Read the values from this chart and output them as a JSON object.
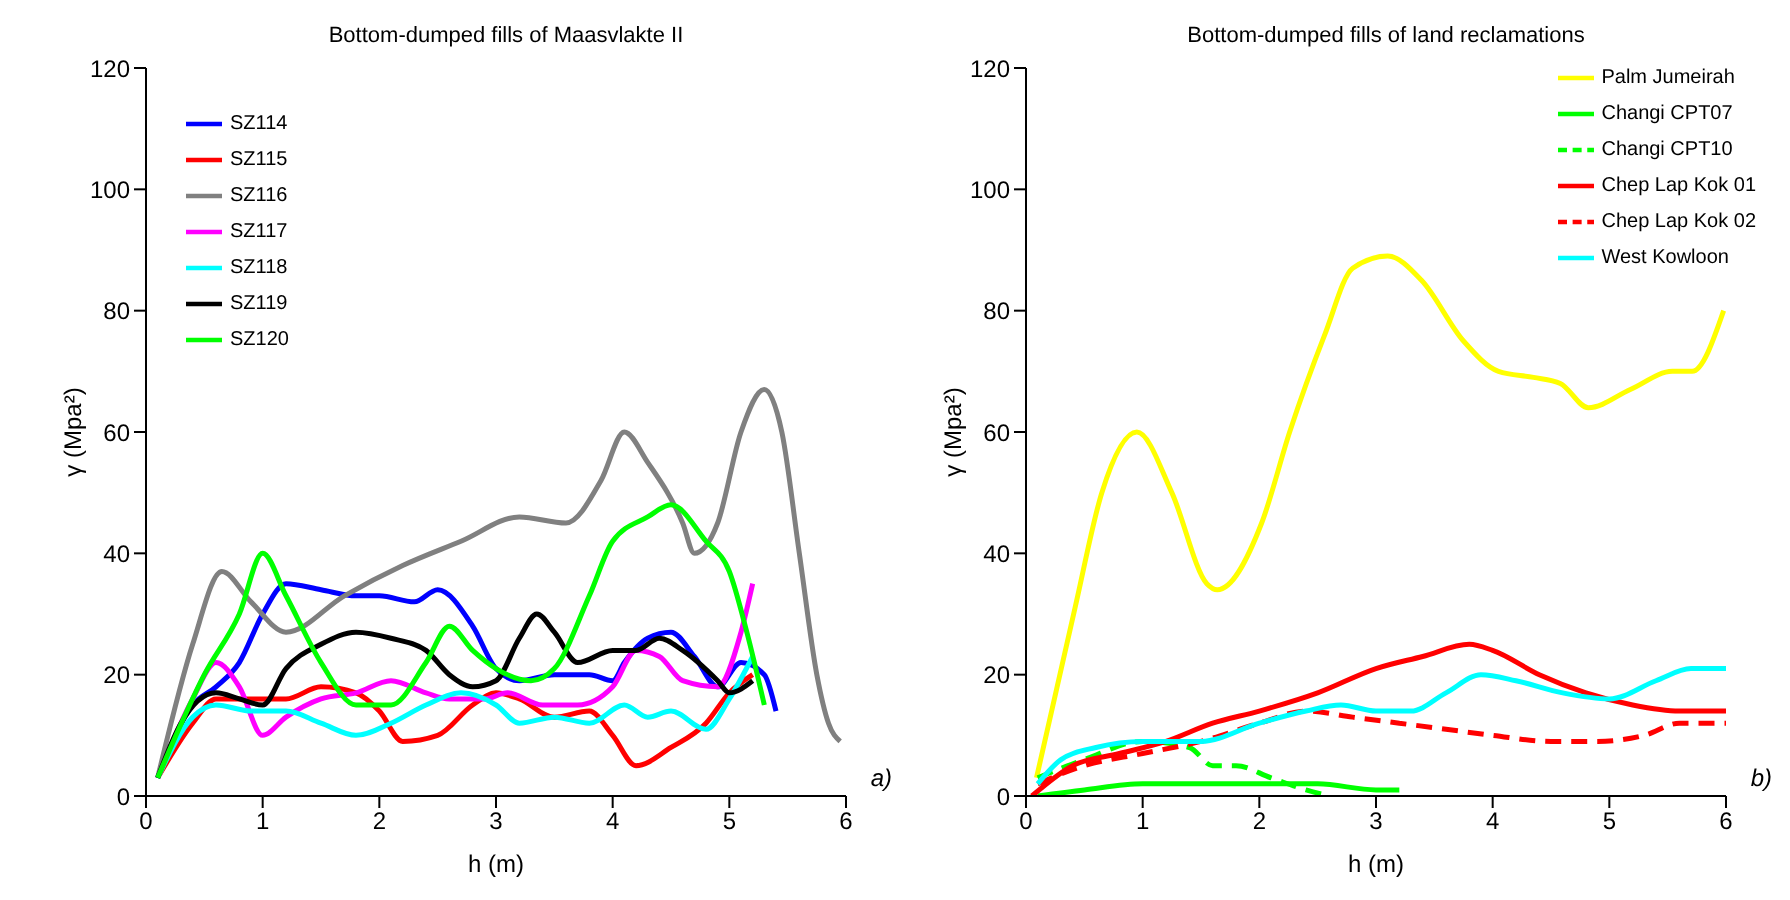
{
  "chart_data": [
    {
      "type": "line",
      "title": "Bottom-dumped fills of Maasvlakte II",
      "xlabel": "h (m)",
      "ylabel": "γ (Mpa²)",
      "xlim": [
        0,
        6
      ],
      "xticks": [
        0,
        1,
        2,
        3,
        4,
        5,
        6
      ],
      "ylim": [
        0,
        120
      ],
      "yticks": [
        0,
        20,
        40,
        60,
        80,
        100,
        120
      ],
      "grid": false,
      "legend": "top left",
      "annotations": [
        "a)"
      ],
      "series": [
        {
          "name": "SZ114",
          "color": "#0000ff",
          "x": [
            0.1,
            0.4,
            0.6,
            0.8,
            1.0,
            1.2,
            1.5,
            1.8,
            2.0,
            2.3,
            2.5,
            2.8,
            3.0,
            3.2,
            3.5,
            3.8,
            4.0,
            4.1,
            4.3,
            4.5,
            4.7,
            4.9,
            5.1,
            5.3,
            5.4
          ],
          "values": [
            3,
            15,
            18,
            22,
            30,
            35,
            34,
            33,
            33,
            32,
            34,
            28,
            21,
            19,
            20,
            20,
            19,
            22,
            26,
            27,
            23,
            18,
            22,
            20,
            14
          ]
        },
        {
          "name": "SZ115",
          "color": "#ff0000",
          "x": [
            0.1,
            0.4,
            0.6,
            0.9,
            1.2,
            1.5,
            1.8,
            2.0,
            2.2,
            2.5,
            2.8,
            3.0,
            3.2,
            3.5,
            3.8,
            4.0,
            4.2,
            4.5,
            4.8,
            5.0,
            5.2
          ],
          "values": [
            3,
            12,
            16,
            16,
            16,
            18,
            17,
            14,
            9,
            10,
            15,
            17,
            16,
            13,
            14,
            10,
            5,
            8,
            12,
            17,
            20
          ]
        },
        {
          "name": "SZ116",
          "color": "#808080",
          "x": [
            0.1,
            0.4,
            0.65,
            0.9,
            1.2,
            1.7,
            2.2,
            2.7,
            3.2,
            3.6,
            3.9,
            4.1,
            4.3,
            4.6,
            4.7,
            4.9,
            5.1,
            5.3,
            5.45,
            5.6,
            5.75,
            5.85,
            5.95
          ],
          "values": [
            3,
            25,
            37,
            32,
            27,
            33,
            38,
            42,
            46,
            45,
            52,
            60,
            55,
            45,
            40,
            45,
            60,
            67,
            60,
            40,
            20,
            12,
            9
          ]
        },
        {
          "name": "SZ117",
          "color": "#ff00ff",
          "x": [
            0.1,
            0.4,
            0.6,
            0.8,
            1.0,
            1.2,
            1.5,
            1.8,
            2.1,
            2.4,
            2.6,
            2.9,
            3.1,
            3.4,
            3.7,
            4.0,
            4.2,
            4.4,
            4.6,
            4.9,
            5.1,
            5.2
          ],
          "values": [
            3,
            16,
            22,
            18,
            10,
            13,
            16,
            17,
            19,
            17,
            16,
            16,
            17,
            15,
            15,
            18,
            24,
            23,
            19,
            18,
            27,
            35
          ]
        },
        {
          "name": "SZ118",
          "color": "#00ffff",
          "x": [
            0.1,
            0.4,
            0.6,
            0.9,
            1.2,
            1.5,
            1.8,
            2.1,
            2.4,
            2.7,
            3.0,
            3.2,
            3.5,
            3.8,
            4.1,
            4.3,
            4.5,
            4.8,
            5.0,
            5.2
          ],
          "values": [
            3,
            13,
            15,
            14,
            14,
            12,
            10,
            12,
            15,
            17,
            15,
            12,
            13,
            12,
            15,
            13,
            14,
            11,
            16,
            23
          ]
        },
        {
          "name": "SZ119",
          "color": "#000000",
          "x": [
            0.1,
            0.3,
            0.6,
            0.8,
            1.0,
            1.2,
            1.5,
            1.8,
            2.1,
            2.4,
            2.6,
            2.8,
            3.0,
            3.2,
            3.35,
            3.5,
            3.7,
            4.0,
            4.2,
            4.4,
            4.6,
            4.9,
            5.0,
            5.2
          ],
          "values": [
            3,
            12,
            17,
            16,
            15,
            21,
            25,
            27,
            26,
            24,
            20,
            18,
            19,
            26,
            30,
            27,
            22,
            24,
            24,
            26,
            24,
            19,
            17,
            19
          ]
        },
        {
          "name": "SZ120",
          "color": "#00ff00",
          "x": [
            0.1,
            0.5,
            0.8,
            1.0,
            1.2,
            1.5,
            1.8,
            2.1,
            2.4,
            2.6,
            2.8,
            3.0,
            3.3,
            3.5,
            3.8,
            4.0,
            4.3,
            4.5,
            4.8,
            5.0,
            5.15,
            5.3
          ],
          "values": [
            3,
            20,
            30,
            40,
            33,
            22,
            15,
            15,
            22,
            28,
            24,
            21,
            19,
            21,
            33,
            42,
            46,
            48,
            42,
            37,
            27,
            15
          ]
        }
      ]
    },
    {
      "type": "line",
      "title": "Bottom-dumped fills of land reclamations",
      "xlabel": "h (m)",
      "ylabel": "γ (Mpa²)",
      "xlim": [
        0,
        6
      ],
      "xticks": [
        0,
        1,
        2,
        3,
        4,
        5,
        6
      ],
      "ylim": [
        0,
        120
      ],
      "yticks": [
        0,
        20,
        40,
        60,
        80,
        100,
        120
      ],
      "grid": false,
      "legend": "top right",
      "annotations": [
        "b)"
      ],
      "series": [
        {
          "name": "Palm Jumeirah",
          "color": "#ffff00",
          "line_style": "solid",
          "x": [
            0.09,
            0.42,
            0.65,
            0.95,
            1.25,
            1.55,
            1.64,
            2.02,
            2.26,
            2.56,
            2.8,
            3.1,
            3.39,
            3.75,
            4.05,
            4.35,
            4.58,
            4.82,
            5.18,
            5.54,
            5.71,
            5.98
          ],
          "values": [
            3,
            31,
            50,
            60,
            50,
            35,
            34,
            45,
            60,
            76,
            87,
            89,
            85,
            75,
            70,
            69,
            68,
            64,
            67,
            70,
            70,
            80
          ]
        },
        {
          "name": "Changi CPT07",
          "color": "#00ff00",
          "line_style": "solid",
          "x": [
            0.1,
            0.5,
            1.0,
            2.0,
            2.5,
            3.0,
            3.2
          ],
          "values": [
            0,
            1,
            2,
            2,
            2,
            1,
            1
          ]
        },
        {
          "name": "Changi CPT10",
          "color": "#00ff00",
          "line_style": "dashed",
          "x": [
            0.1,
            0.5,
            1.0,
            1.4,
            1.6,
            1.8,
            2.1,
            2.4,
            2.6
          ],
          "values": [
            3,
            6,
            9,
            8,
            5,
            5,
            3,
            1,
            0
          ]
        },
        {
          "name": "Chep Lap Kok 01",
          "color": "#ff0000",
          "line_style": "solid",
          "x": [
            0.05,
            0.4,
            0.8,
            1.2,
            1.6,
            2.0,
            2.5,
            3.0,
            3.4,
            3.8,
            4.0,
            4.4,
            4.8,
            5.2,
            5.6,
            6.0
          ],
          "values": [
            0,
            5,
            7,
            9,
            12,
            14,
            17,
            21,
            23,
            25,
            24,
            20,
            17,
            15,
            14,
            14
          ]
        },
        {
          "name": "Chep Lap Kok 02",
          "color": "#ff0000",
          "line_style": "dashed",
          "x": [
            0.1,
            0.5,
            1.0,
            1.5,
            2.0,
            2.4,
            2.8,
            3.2,
            3.6,
            4.0,
            4.5,
            4.9,
            5.3,
            5.6,
            6.0
          ],
          "values": [
            2,
            5,
            7,
            9,
            12,
            14,
            13,
            12,
            11,
            10,
            9,
            9,
            10,
            12,
            12
          ]
        },
        {
          "name": "West Kowloon",
          "color": "#00ffff",
          "line_style": "solid",
          "x": [
            0.1,
            0.3,
            0.6,
            1.0,
            1.5,
            2.0,
            2.4,
            2.7,
            3.0,
            3.3,
            3.6,
            3.9,
            4.2,
            4.6,
            5.0,
            5.4,
            5.7,
            6.0
          ],
          "values": [
            2,
            6,
            8,
            9,
            9,
            12,
            14,
            15,
            14,
            14,
            17,
            20,
            19,
            17,
            16,
            19,
            21,
            21
          ]
        }
      ]
    }
  ]
}
